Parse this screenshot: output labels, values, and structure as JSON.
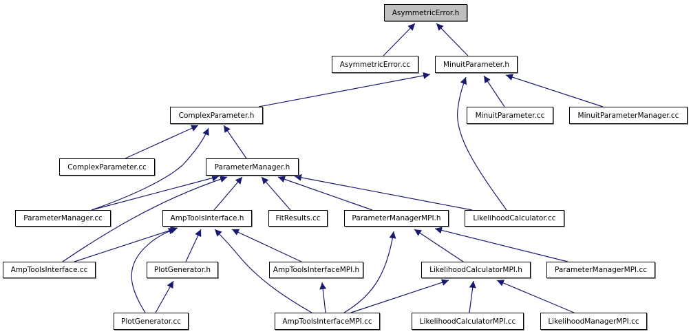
{
  "graph": {
    "edge_color": "#191970",
    "root_fill": "#bfbfbf",
    "nodes": [
      {
        "label": "AsymmetricError.h",
        "root": true
      },
      {
        "label": "AsymmetricError.cc"
      },
      {
        "label": "MinuitParameter.h"
      },
      {
        "label": "ComplexParameter.h"
      },
      {
        "label": "MinuitParameter.cc"
      },
      {
        "label": "MinuitParameterManager.cc"
      },
      {
        "label": "ComplexParameter.cc"
      },
      {
        "label": "ParameterManager.h"
      },
      {
        "label": "ParameterManager.cc"
      },
      {
        "label": "AmpToolsInterface.h"
      },
      {
        "label": "FitResults.cc"
      },
      {
        "label": "ParameterManagerMPI.h"
      },
      {
        "label": "LikelihoodCalculator.cc"
      },
      {
        "label": "AmpToolsInterface.cc"
      },
      {
        "label": "PlotGenerator.h"
      },
      {
        "label": "AmpToolsInterfaceMPI.h"
      },
      {
        "label": "LikelihoodCalculatorMPI.h"
      },
      {
        "label": "ParameterManagerMPI.cc"
      },
      {
        "label": "PlotGenerator.cc"
      },
      {
        "label": "AmpToolsInterfaceMPI.cc"
      },
      {
        "label": "LikelihoodCalculatorMPI.cc"
      },
      {
        "label": "LikelihoodManagerMPI.cc"
      }
    ],
    "edges": [
      {
        "from": "AsymmetricError.cc",
        "to": "AsymmetricError.h"
      },
      {
        "from": "MinuitParameter.h",
        "to": "AsymmetricError.h"
      },
      {
        "from": "ComplexParameter.h",
        "to": "MinuitParameter.h"
      },
      {
        "from": "MinuitParameter.cc",
        "to": "MinuitParameter.h"
      },
      {
        "from": "MinuitParameterManager.cc",
        "to": "MinuitParameter.h"
      },
      {
        "from": "LikelihoodCalculator.cc",
        "to": "MinuitParameter.h"
      },
      {
        "from": "ComplexParameter.cc",
        "to": "ComplexParameter.h"
      },
      {
        "from": "ParameterManager.cc",
        "to": "ComplexParameter.h"
      },
      {
        "from": "ParameterManager.h",
        "to": "ComplexParameter.h"
      },
      {
        "from": "ParameterManager.cc",
        "to": "ParameterManager.h"
      },
      {
        "from": "AmpToolsInterface.cc",
        "to": "ParameterManager.h"
      },
      {
        "from": "AmpToolsInterface.h",
        "to": "ParameterManager.h"
      },
      {
        "from": "FitResults.cc",
        "to": "ParameterManager.h"
      },
      {
        "from": "ParameterManagerMPI.h",
        "to": "ParameterManager.h"
      },
      {
        "from": "LikelihoodCalculator.cc",
        "to": "ParameterManager.h"
      },
      {
        "from": "AmpToolsInterface.cc",
        "to": "AmpToolsInterface.h"
      },
      {
        "from": "PlotGenerator.cc",
        "to": "AmpToolsInterface.h"
      },
      {
        "from": "PlotGenerator.h",
        "to": "AmpToolsInterface.h"
      },
      {
        "from": "AmpToolsInterfaceMPI.cc",
        "to": "AmpToolsInterface.h"
      },
      {
        "from": "AmpToolsInterfaceMPI.h",
        "to": "AmpToolsInterface.h"
      },
      {
        "from": "PlotGenerator.cc",
        "to": "PlotGenerator.h"
      },
      {
        "from": "AmpToolsInterfaceMPI.cc",
        "to": "AmpToolsInterfaceMPI.h"
      },
      {
        "from": "AmpToolsInterfaceMPI.cc",
        "to": "ParameterManagerMPI.h"
      },
      {
        "from": "LikelihoodCalculatorMPI.h",
        "to": "ParameterManagerMPI.h"
      },
      {
        "from": "ParameterManagerMPI.cc",
        "to": "ParameterManagerMPI.h"
      },
      {
        "from": "AmpToolsInterfaceMPI.cc",
        "to": "LikelihoodCalculatorMPI.h"
      },
      {
        "from": "LikelihoodCalculatorMPI.cc",
        "to": "LikelihoodCalculatorMPI.h"
      },
      {
        "from": "LikelihoodManagerMPI.cc",
        "to": "LikelihoodCalculatorMPI.h"
      }
    ]
  }
}
